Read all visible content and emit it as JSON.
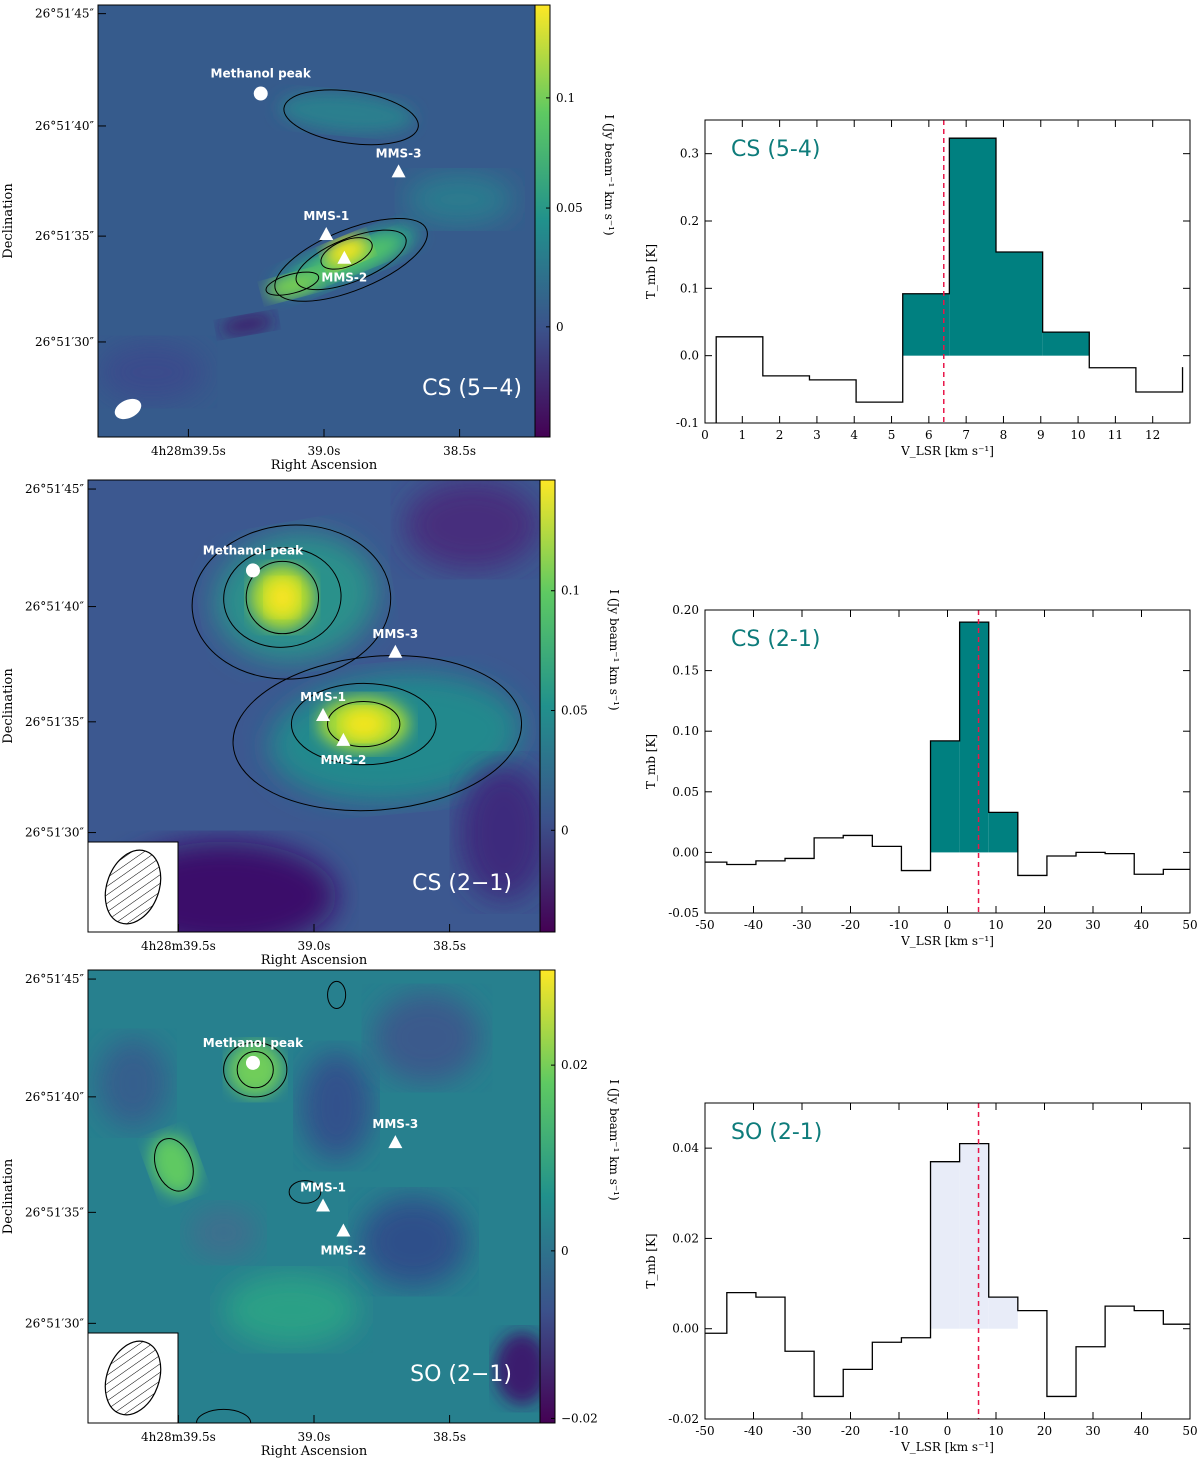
{
  "chart_data": [
    {
      "type": "heatmap",
      "xlabel": "Right Ascension",
      "ylabel": "Declination",
      "x_ticks": [
        "4h28m39.5s",
        "39.0s",
        "38.5s"
      ],
      "y_ticks": [
        "26°51′45″",
        "26°51′40″",
        "26°51′35″",
        "26°51′30″"
      ],
      "colorbar_label": "I (Jy beam⁻¹ km s⁻¹)",
      "colorbar_ticks": [
        "0.1",
        "0.05",
        "0"
      ],
      "colormap": "viridis",
      "line_label": "CS (5−4)",
      "sources": [
        "Methanol peak",
        "MMS-1",
        "MMS-2",
        "MMS-3"
      ]
    },
    {
      "type": "line",
      "title": "CS (5-4)",
      "xlabel": "V_LSR [km s⁻¹]",
      "ylabel": "T_mb [K]",
      "xlim": [
        0,
        13
      ],
      "ylim": [
        -0.1,
        0.35
      ],
      "x_ticks": [
        0,
        1,
        2,
        3,
        4,
        5,
        6,
        7,
        8,
        9,
        10,
        11,
        12
      ],
      "y_ticks": [
        -0.1,
        0.0,
        0.1,
        0.2,
        0.3
      ],
      "step_edges": [
        0.3,
        1.55,
        2.8,
        4.05,
        5.3,
        6.55,
        7.8,
        9.05,
        10.3,
        11.55,
        12.8
      ],
      "values": [
        0.028,
        -0.03,
        -0.036,
        -0.069,
        0.092,
        0.323,
        0.154,
        0.035,
        -0.018,
        -0.054,
        -0.017
      ],
      "shaded_range": [
        5.3,
        10.3
      ],
      "fill_color": "#008080",
      "vline": 6.4,
      "vline_color": "#e8174a"
    },
    {
      "type": "heatmap",
      "xlabel": "Right Ascension",
      "ylabel": "Declination",
      "x_ticks": [
        "4h28m39.5s",
        "39.0s",
        "38.5s"
      ],
      "y_ticks": [
        "26°51′45″",
        "26°51′40″",
        "26°51′35″",
        "26°51′30″"
      ],
      "colorbar_label": "I (Jy beam⁻¹ km s⁻¹)",
      "colorbar_ticks": [
        "0.1",
        "0.05",
        "0"
      ],
      "colormap": "viridis",
      "line_label": "CS (2−1)",
      "sources": [
        "Methanol peak",
        "MMS-1",
        "MMS-2",
        "MMS-3"
      ]
    },
    {
      "type": "line",
      "title": "CS (2-1)",
      "xlabel": "V_LSR [km s⁻¹]",
      "ylabel": "T_mb [K]",
      "xlim": [
        -50,
        50
      ],
      "ylim": [
        -0.05,
        0.2
      ],
      "x_ticks": [
        -50,
        -40,
        -30,
        -20,
        -10,
        0,
        10,
        20,
        30,
        40,
        50
      ],
      "y_ticks": [
        -0.05,
        0.0,
        0.05,
        0.1,
        0.15,
        0.2
      ],
      "step_edges": [
        -51.5,
        -45.5,
        -39.5,
        -33.5,
        -27.5,
        -21.5,
        -15.5,
        -9.5,
        -3.5,
        2.5,
        8.5,
        14.5,
        20.5,
        26.5,
        32.5,
        38.5,
        44.5,
        50.5
      ],
      "values": [
        -0.008,
        -0.01,
        -0.007,
        -0.005,
        0.012,
        0.014,
        0.005,
        -0.015,
        0.092,
        0.19,
        0.033,
        -0.019,
        -0.003,
        0.0,
        -0.001,
        -0.018,
        -0.014
      ],
      "shaded_range": [
        -3.5,
        14.5
      ],
      "fill_color": "#008080",
      "vline": 6.4,
      "vline_color": "#e8174a"
    },
    {
      "type": "heatmap",
      "xlabel": "Right Ascension",
      "ylabel": "Declination",
      "x_ticks": [
        "4h28m39.5s",
        "39.0s",
        "38.5s"
      ],
      "y_ticks": [
        "26°51′45″",
        "26°51′40″",
        "26°51′35″",
        "26°51′30″"
      ],
      "colorbar_label": "I (Jy beam⁻¹ km s⁻¹)",
      "colorbar_ticks": [
        "0.02",
        "0",
        "−0.02"
      ],
      "colormap": "viridis",
      "line_label": "SO (2−1)",
      "sources": [
        "Methanol peak",
        "MMS-1",
        "MMS-2",
        "MMS-3"
      ]
    },
    {
      "type": "line",
      "title": "SO (2-1)",
      "xlabel": "V_LSR [km s⁻¹]",
      "ylabel": "T_mb [K]",
      "xlim": [
        -50,
        50
      ],
      "ylim": [
        -0.02,
        0.05
      ],
      "x_ticks": [
        -50,
        -40,
        -30,
        -20,
        -10,
        0,
        10,
        20,
        30,
        40,
        50
      ],
      "y_ticks": [
        -0.02,
        0.0,
        0.02,
        0.04
      ],
      "step_edges": [
        -51.5,
        -45.5,
        -39.5,
        -33.5,
        -27.5,
        -21.5,
        -15.5,
        -9.5,
        -3.5,
        2.5,
        8.5,
        14.5,
        20.5,
        26.5,
        32.5,
        38.5,
        44.5,
        50.5
      ],
      "values": [
        -0.001,
        0.008,
        0.007,
        -0.005,
        -0.015,
        -0.009,
        -0.003,
        -0.002,
        0.037,
        0.041,
        0.007,
        0.004,
        -0.015,
        -0.004,
        0.005,
        0.004,
        0.001
      ],
      "shaded_range": [
        -3.5,
        14.5
      ],
      "fill_color": "#e8ecf8",
      "vline": 6.4,
      "vline_color": "#e8174a"
    }
  ]
}
